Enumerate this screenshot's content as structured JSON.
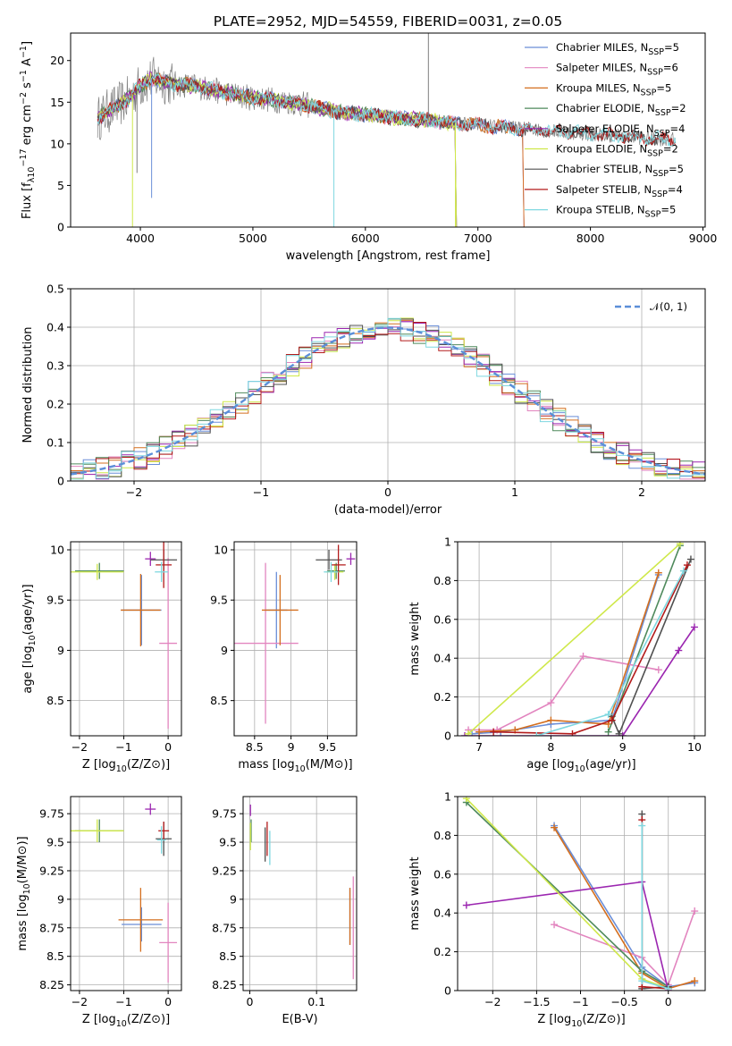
{
  "figure": {
    "title": "PLATE=2952, MJD=54559, FIBERID=0031, z=0.05"
  },
  "colors": {
    "Chabrier MILES": "#6a8ed8",
    "Salpeter MILES": "#e285bf",
    "Kroupa MILES": "#d46f1f",
    "Chabrier ELODIE": "#4f8a5c",
    "Salpeter ELODIE": "#9b26b0",
    "Kroupa ELODIE": "#cfe84a",
    "Chabrier STELIB": "#505050",
    "Salpeter STELIB": "#b31b1b",
    "Kroupa STELIB": "#7fd8e0",
    "data": "#7f7f7f",
    "gaussian": "#5b8ed8"
  },
  "chart_data": [
    {
      "id": "spectrum",
      "type": "line",
      "title": "PLATE=2952, MJD=54559, FIBERID=0031, z=0.05",
      "xlabel": "wavelength [Angstrom, rest frame]",
      "ylabel": "Flux [f_λ10^-17 erg cm^-2 s^-1 A^-1]",
      "xlim": [
        3380,
        9020
      ],
      "ylim": [
        0,
        23.3
      ],
      "xticks": [
        4000,
        5000,
        6000,
        7000,
        8000,
        9000
      ],
      "yticks": [
        0,
        5,
        10,
        15,
        20
      ],
      "grid": false,
      "legend_position": "top-right",
      "legend": [
        {
          "label": "Chabrier MILES, N_SSP=5"
        },
        {
          "label": "Salpeter MILES, N_SSP=6"
        },
        {
          "label": "Kroupa MILES, N_SSP=5"
        },
        {
          "label": "Chabrier ELODIE, N_SSP=2"
        },
        {
          "label": "Salpeter ELODIE, N_SSP=4"
        },
        {
          "label": "Kroupa ELODIE, N_SSP=2"
        },
        {
          "label": "Chabrier STELIB, N_SSP=5"
        },
        {
          "label": "Salpeter STELIB, N_SSP=4"
        },
        {
          "label": "Kroupa STELIB, N_SSP=5"
        }
      ],
      "continuum": {
        "x": [
          3620,
          3700,
          3800,
          3900,
          4000,
          4100,
          4200,
          4300,
          4500,
          4700,
          4900,
          5100,
          5300,
          5500,
          5700,
          5900,
          6100,
          6300,
          6500,
          6700,
          6900,
          7100,
          7300,
          7400,
          7600,
          7800,
          8000,
          8200,
          8400,
          8600,
          8760
        ],
        "y": [
          13.0,
          13.8,
          14.6,
          15.5,
          17.0,
          17.8,
          17.5,
          17.2,
          16.9,
          16.3,
          15.7,
          15.4,
          15.1,
          14.6,
          14.0,
          13.6,
          13.4,
          13.1,
          12.9,
          12.6,
          12.4,
          12.1,
          11.9,
          11.8,
          11.6,
          11.4,
          11.2,
          11.0,
          10.8,
          10.6,
          10.5
        ]
      },
      "model_spans": {
        "Chabrier MILES": [
          3620,
          7400
        ],
        "Salpeter MILES": [
          3620,
          7400
        ],
        "Kroupa MILES": [
          3620,
          7400
        ],
        "Chabrier ELODIE": [
          3620,
          6800
        ],
        "Salpeter ELODIE": [
          3620,
          6800
        ],
        "Kroupa ELODIE": [
          3620,
          6800
        ],
        "Chabrier STELIB": [
          3620,
          8760
        ],
        "Salpeter STELIB": [
          3620,
          8760
        ],
        "Kroupa STELIB": [
          3620,
          8760
        ]
      },
      "features": [
        {
          "x": 3930,
          "depth_to": 0.0,
          "series": "Kroupa ELODIE"
        },
        {
          "x": 3970,
          "depth_to": 6.5,
          "series": "data"
        },
        {
          "x": 4100,
          "depth_to": 3.5,
          "series": "Chabrier MILES"
        },
        {
          "x": 5720,
          "depth_to": 0.0,
          "series": "Kroupa STELIB"
        },
        {
          "x": 6560,
          "depth_to": 23.3,
          "series": "data"
        },
        {
          "x": 6800,
          "depth_to": 0.0,
          "series": "Kroupa ELODIE"
        }
      ]
    },
    {
      "id": "residuals",
      "type": "histogram",
      "xlabel": "(data-model)/error",
      "ylabel": "Normed distribution",
      "xlim": [
        -2.5,
        2.5
      ],
      "ylim": [
        0,
        0.5
      ],
      "xticks": [
        -2,
        -1,
        0,
        1,
        2
      ],
      "yticks": [
        0.0,
        0.1,
        0.2,
        0.3,
        0.4,
        0.5
      ],
      "grid": true,
      "legend_position": "top-right",
      "gaussian_label": "𝒩(0, 1)",
      "bin_width": 0.1
    },
    {
      "id": "age_vs_Z",
      "type": "errorbar",
      "xlabel": "Z [log10(Z/Z⊙)]",
      "ylabel": "age  [log10(age/yr)]",
      "xlim": [
        -2.2,
        0.3
      ],
      "ylim": [
        8.15,
        10.08
      ],
      "xticks": [
        -2,
        -1,
        0
      ],
      "yticks": [
        8.5,
        9.0,
        9.5,
        10.0
      ],
      "grid": true,
      "points": [
        {
          "s": "Chabrier MILES",
          "x": -0.6,
          "y": 9.4,
          "xerr": 0.45,
          "yerr": 0.35
        },
        {
          "s": "Salpeter MILES",
          "x": 0.0,
          "y": 9.07,
          "xerr": 0.2,
          "yerr": 0.85
        },
        {
          "s": "Kroupa MILES",
          "x": -0.62,
          "y": 9.4,
          "xerr": 0.45,
          "yerr": 0.36
        },
        {
          "s": "Chabrier ELODIE",
          "x": -1.55,
          "y": 9.79,
          "xerr": 0.55,
          "yerr": 0.08
        },
        {
          "s": "Salpeter ELODIE",
          "x": -0.4,
          "y": 9.91,
          "xerr": 0.12,
          "yerr": 0.07
        },
        {
          "s": "Kroupa ELODIE",
          "x": -1.6,
          "y": 9.78,
          "xerr": 0.6,
          "yerr": 0.08
        },
        {
          "s": "Chabrier STELIB",
          "x": -0.1,
          "y": 9.9,
          "xerr": 0.3,
          "yerr": 0.1
        },
        {
          "s": "Salpeter STELIB",
          "x": -0.1,
          "y": 9.85,
          "xerr": 0.18,
          "yerr": 0.23
        },
        {
          "s": "Kroupa STELIB",
          "x": -0.15,
          "y": 9.78,
          "xerr": 0.15,
          "yerr": 0.1
        }
      ]
    },
    {
      "id": "age_vs_mass",
      "type": "errorbar",
      "xlabel": "mass [log10(M/M⊙)]",
      "ylabel": "",
      "xlim": [
        8.22,
        9.9
      ],
      "ylim": [
        8.15,
        10.08
      ],
      "xticks": [
        8.5,
        9.0,
        9.5
      ],
      "yticks": [
        8.5,
        9.0,
        9.5,
        10.0
      ],
      "grid": true,
      "points": [
        {
          "s": "Chabrier MILES",
          "x": 8.8,
          "y": 9.4,
          "xerr": 0.15,
          "yerr": 0.38
        },
        {
          "s": "Salpeter MILES",
          "x": 8.65,
          "y": 9.07,
          "xerr": 0.45,
          "yerr": 0.8
        },
        {
          "s": "Kroupa MILES",
          "x": 8.85,
          "y": 9.4,
          "xerr": 0.25,
          "yerr": 0.35
        },
        {
          "s": "Chabrier ELODIE",
          "x": 9.62,
          "y": 9.79,
          "xerr": 0.12,
          "yerr": 0.08
        },
        {
          "s": "Salpeter ELODIE",
          "x": 9.82,
          "y": 9.91,
          "xerr": 0.06,
          "yerr": 0.06
        },
        {
          "s": "Kroupa ELODIE",
          "x": 9.6,
          "y": 9.78,
          "xerr": 0.12,
          "yerr": 0.08
        },
        {
          "s": "Chabrier STELIB",
          "x": 9.52,
          "y": 9.9,
          "xerr": 0.18,
          "yerr": 0.1
        },
        {
          "s": "Salpeter STELIB",
          "x": 9.65,
          "y": 9.85,
          "xerr": 0.1,
          "yerr": 0.2
        },
        {
          "s": "Kroupa STELIB",
          "x": 9.55,
          "y": 9.78,
          "xerr": 0.1,
          "yerr": 0.1
        }
      ]
    },
    {
      "id": "mass_weight_vs_age",
      "type": "line",
      "xlabel": "age  [log10(age/yr)]",
      "ylabel": "mass weight",
      "xlim": [
        6.7,
        10.15
      ],
      "ylim": [
        0,
        1
      ],
      "xticks": [
        7,
        8,
        9,
        10
      ],
      "yticks": [
        0.0,
        0.2,
        0.4,
        0.6,
        0.8,
        1.0
      ],
      "grid": true,
      "series": [
        {
          "s": "Chabrier MILES",
          "x": [
            6.9,
            7.3,
            8.0,
            8.85,
            9.5
          ],
          "y": [
            0.01,
            0.02,
            0.06,
            0.08,
            0.83
          ]
        },
        {
          "s": "Salpeter MILES",
          "x": [
            6.85,
            7.25,
            8.0,
            8.45,
            9.5
          ],
          "y": [
            0.03,
            0.03,
            0.17,
            0.41,
            0.34
          ]
        },
        {
          "s": "Kroupa MILES",
          "x": [
            7.0,
            7.5,
            8.0,
            8.8,
            9.5
          ],
          "y": [
            0.02,
            0.03,
            0.08,
            0.06,
            0.84
          ]
        },
        {
          "s": "Chabrier ELODIE",
          "x": [
            8.8,
            9.8
          ],
          "y": [
            0.02,
            0.98
          ]
        },
        {
          "s": "Salpeter ELODIE",
          "x": [
            6.8,
            9.0,
            9.78,
            10.0
          ],
          "y": [
            0.0,
            0.0,
            0.44,
            0.56
          ]
        },
        {
          "s": "Kroupa ELODIE",
          "x": [
            6.85,
            9.8
          ],
          "y": [
            0.01,
            0.99
          ]
        },
        {
          "s": "Chabrier STELIB",
          "x": [
            8.85,
            8.95,
            9.95
          ],
          "y": [
            0.1,
            0.01,
            0.91
          ]
        },
        {
          "s": "Salpeter STELIB",
          "x": [
            7.2,
            8.3,
            8.85,
            9.9
          ],
          "y": [
            0.02,
            0.01,
            0.08,
            0.88
          ]
        },
        {
          "s": "Kroupa STELIB",
          "x": [
            7.8,
            8.8,
            9.85
          ],
          "y": [
            0.0,
            0.11,
            0.85
          ]
        }
      ]
    },
    {
      "id": "mass_vs_Z",
      "type": "errorbar",
      "xlabel": "Z [log10(Z/Z⊙)]",
      "ylabel": "mass [log10(M/M⊙)]",
      "xlim": [
        -2.2,
        0.3
      ],
      "ylim": [
        8.2,
        9.9
      ],
      "xticks": [
        -2,
        -1,
        0
      ],
      "yticks": [
        8.25,
        8.5,
        8.75,
        9.0,
        9.25,
        9.5,
        9.75
      ],
      "grid": true,
      "points": [
        {
          "s": "Chabrier MILES",
          "x": -0.6,
          "y": 8.78,
          "xerr": 0.45,
          "yerr": 0.15
        },
        {
          "s": "Salpeter MILES",
          "x": 0.0,
          "y": 8.62,
          "xerr": 0.2,
          "yerr": 0.35
        },
        {
          "s": "Kroupa MILES",
          "x": -0.62,
          "y": 8.82,
          "xerr": 0.5,
          "yerr": 0.28
        },
        {
          "s": "Chabrier ELODIE",
          "x": -1.55,
          "y": 9.6,
          "xerr": 0.55,
          "yerr": 0.1
        },
        {
          "s": "Salpeter ELODIE",
          "x": -0.4,
          "y": 9.79,
          "xerr": 0.12,
          "yerr": 0.05
        },
        {
          "s": "Kroupa ELODIE",
          "x": -1.6,
          "y": 9.6,
          "xerr": 0.6,
          "yerr": 0.1
        },
        {
          "s": "Chabrier STELIB",
          "x": -0.1,
          "y": 9.53,
          "xerr": 0.18,
          "yerr": 0.15
        },
        {
          "s": "Salpeter STELIB",
          "x": -0.1,
          "y": 9.6,
          "xerr": 0.12,
          "yerr": 0.08
        },
        {
          "s": "Kroupa STELIB",
          "x": -0.15,
          "y": 9.52,
          "xerr": 0.1,
          "yerr": 0.12
        }
      ]
    },
    {
      "id": "mass_vs_ebv",
      "type": "errorbar",
      "xlabel": "E(B-V)",
      "ylabel": "",
      "xlim": [
        -0.01,
        0.16
      ],
      "ylim": [
        8.2,
        9.9
      ],
      "xticks": [
        0.0,
        0.1
      ],
      "yticks": [
        8.25,
        8.5,
        8.75,
        9.0,
        9.25,
        9.5,
        9.75
      ],
      "grid": true,
      "points": [
        {
          "s": "Chabrier MILES",
          "x": 0.15,
          "y": 8.85,
          "xerr": 0,
          "yerr": 0.25
        },
        {
          "s": "Salpeter MILES",
          "x": 0.155,
          "y": 8.75,
          "xerr": 0,
          "yerr": 0.45
        },
        {
          "s": "Kroupa MILES",
          "x": 0.15,
          "y": 8.85,
          "xerr": 0,
          "yerr": 0.25
        },
        {
          "s": "Chabrier ELODIE",
          "x": 0.002,
          "y": 9.6,
          "xerr": 0,
          "yerr": 0.1
        },
        {
          "s": "Salpeter ELODIE",
          "x": 0.001,
          "y": 9.78,
          "xerr": 0,
          "yerr": 0.05
        },
        {
          "s": "Kroupa ELODIE",
          "x": 0.001,
          "y": 9.55,
          "xerr": 0,
          "yerr": 0.12
        },
        {
          "s": "Chabrier STELIB",
          "x": 0.023,
          "y": 9.48,
          "xerr": 0,
          "yerr": 0.15
        },
        {
          "s": "Salpeter STELIB",
          "x": 0.026,
          "y": 9.53,
          "xerr": 0,
          "yerr": 0.15
        },
        {
          "s": "Kroupa STELIB",
          "x": 0.03,
          "y": 9.45,
          "xerr": 0,
          "yerr": 0.15
        }
      ]
    },
    {
      "id": "mass_weight_vs_Z",
      "type": "line",
      "xlabel": "Z [log10(Z/Z⊙)]",
      "ylabel": "mass weight",
      "xlim": [
        -2.4,
        0.42
      ],
      "ylim": [
        0,
        1
      ],
      "xticks": [
        -2.0,
        -1.5,
        -1.0,
        -0.5,
        0.0
      ],
      "yticks": [
        0.0,
        0.2,
        0.4,
        0.6,
        0.8,
        1.0
      ],
      "grid": true,
      "series": [
        {
          "s": "Chabrier MILES",
          "x": [
            -1.3,
            -0.3,
            0.0,
            0.3
          ],
          "y": [
            0.85,
            0.12,
            0.02,
            0.04
          ]
        },
        {
          "s": "Salpeter MILES",
          "x": [
            -1.3,
            -0.3,
            0.0,
            0.3
          ],
          "y": [
            0.34,
            0.17,
            0.03,
            0.41
          ]
        },
        {
          "s": "Kroupa MILES",
          "x": [
            -1.3,
            -0.3,
            0.0,
            0.3
          ],
          "y": [
            0.84,
            0.09,
            0.01,
            0.05
          ]
        },
        {
          "s": "Chabrier ELODIE",
          "x": [
            -2.3,
            -0.3,
            0.0
          ],
          "y": [
            0.97,
            0.1,
            0.02
          ]
        },
        {
          "s": "Salpeter ELODIE",
          "x": [
            -2.3,
            -0.3,
            0.0
          ],
          "y": [
            0.44,
            0.56,
            0.0
          ]
        },
        {
          "s": "Kroupa ELODIE",
          "x": [
            -2.3,
            -0.3,
            0.0
          ],
          "y": [
            0.99,
            0.06,
            0.01
          ]
        },
        {
          "s": "Chabrier STELIB",
          "x": [
            -0.3,
            -0.3,
            0.0
          ],
          "y": [
            0.91,
            0.01,
            0.02
          ]
        },
        {
          "s": "Salpeter STELIB",
          "x": [
            -0.3,
            -0.3,
            0.0
          ],
          "y": [
            0.88,
            0.02,
            0.01
          ]
        },
        {
          "s": "Kroupa STELIB",
          "x": [
            -0.3,
            -0.3,
            0.0
          ],
          "y": [
            0.85,
            0.05,
            0.01
          ]
        }
      ]
    }
  ]
}
